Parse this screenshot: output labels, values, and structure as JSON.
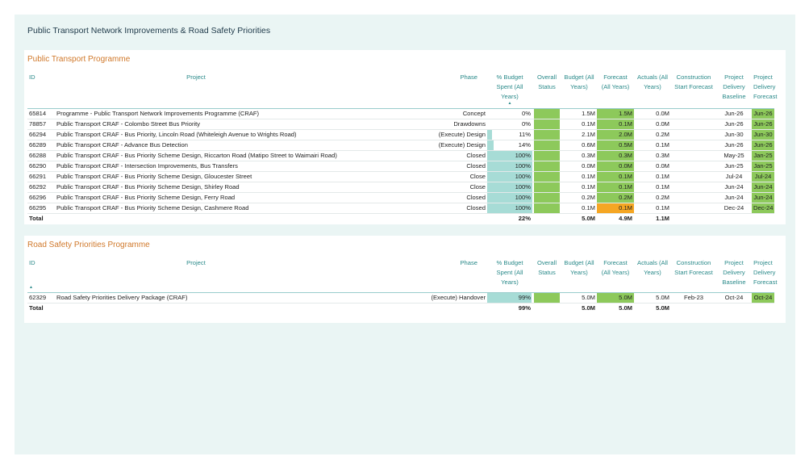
{
  "report_title": "Public Transport Network Improvements & Road Safety Priorities",
  "columns": {
    "id": "ID",
    "project": "Project",
    "phase": "Phase",
    "pct_budget": "% Budget Spent (All Years)",
    "overall_status": "Overall Status",
    "budget": "Budget (All Years)",
    "forecast": "Forecast (All Years)",
    "actuals": "Actuals (All Years)",
    "construction_start": "Construction Start Forecast",
    "delivery_baseline": "Project Delivery Baseline",
    "delivery_forecast": "Project Delivery Forecast"
  },
  "sort_arrow": "▲",
  "colors": {
    "green": "#8dc95b",
    "orange": "#f5a623",
    "bar": "#a7dcd6"
  },
  "public_transport": {
    "title": "Public Transport Programme",
    "rows": [
      {
        "id": "65814",
        "project": "Programme - Public Transport Network Improvements Programme (CRAF)",
        "phase": "Concept",
        "pct": "0%",
        "pct_value": 0,
        "budget": "1.5M",
        "forecast": "1.5M",
        "forecast_color": "green",
        "actuals": "0.0M",
        "cs": "",
        "baseline": "Jun-26",
        "dforecast": "Jun-26"
      },
      {
        "id": "78857",
        "project": "Public Transport CRAF - Colombo Street Bus Priority",
        "phase": "Drawdowns",
        "pct": "0%",
        "pct_value": 0,
        "budget": "0.1M",
        "forecast": "0.1M",
        "forecast_color": "green",
        "actuals": "0.0M",
        "cs": "",
        "baseline": "Jun-26",
        "dforecast": "Jun-26"
      },
      {
        "id": "66294",
        "project": "Public Transport CRAF - Bus Priority, Lincoln Road (Whiteleigh Avenue to Wrights Road)",
        "phase": "(Execute) Design",
        "pct": "11%",
        "pct_value": 11,
        "budget": "2.1M",
        "forecast": "2.0M",
        "forecast_color": "green",
        "actuals": "0.2M",
        "cs": "",
        "baseline": "Jun-30",
        "dforecast": "Jun-30"
      },
      {
        "id": "66289",
        "project": "Public Transport CRAF - Advance Bus Detection",
        "phase": "(Execute) Design",
        "pct": "14%",
        "pct_value": 14,
        "budget": "0.6M",
        "forecast": "0.5M",
        "forecast_color": "green",
        "actuals": "0.1M",
        "cs": "",
        "baseline": "Jun-26",
        "dforecast": "Jun-26"
      },
      {
        "id": "66288",
        "project": "Public Transport CRAF - Bus Priority Scheme Design, Riccarton Road (Matipo Street to Waimairi Road)",
        "phase": "Closed",
        "pct": "100%",
        "pct_value": 100,
        "budget": "0.3M",
        "forecast": "0.3M",
        "forecast_color": "green",
        "actuals": "0.3M",
        "cs": "",
        "baseline": "May-25",
        "dforecast": "Jan-25"
      },
      {
        "id": "66290",
        "project": "Public Transport CRAF - Intersection Improvements, Bus Transfers",
        "phase": "Closed",
        "pct": "100%",
        "pct_value": 100,
        "budget": "0.0M",
        "forecast": "0.0M",
        "forecast_color": "green",
        "actuals": "0.0M",
        "cs": "",
        "baseline": "Jun-25",
        "dforecast": "Jan-25"
      },
      {
        "id": "66291",
        "project": "Public Transport CRAF - Bus Priority Scheme Design, Gloucester Street",
        "phase": "Close",
        "pct": "100%",
        "pct_value": 100,
        "budget": "0.1M",
        "forecast": "0.1M",
        "forecast_color": "green",
        "actuals": "0.1M",
        "cs": "",
        "baseline": "Jul-24",
        "dforecast": "Jul-24"
      },
      {
        "id": "66292",
        "project": "Public Transport CRAF - Bus Priority Scheme Design, Shirley Road",
        "phase": "Close",
        "pct": "100%",
        "pct_value": 100,
        "budget": "0.1M",
        "forecast": "0.1M",
        "forecast_color": "green",
        "actuals": "0.1M",
        "cs": "",
        "baseline": "Jun-24",
        "dforecast": "Jun-24"
      },
      {
        "id": "66296",
        "project": "Public Transport CRAF - Bus Priority Scheme Design, Ferry Road",
        "phase": "Closed",
        "pct": "100%",
        "pct_value": 100,
        "budget": "0.2M",
        "forecast": "0.2M",
        "forecast_color": "green",
        "actuals": "0.2M",
        "cs": "",
        "baseline": "Jun-24",
        "dforecast": "Jun-24"
      },
      {
        "id": "66295",
        "project": "Public Transport CRAF - Bus Priority Scheme Design, Cashmere Road",
        "phase": "Closed",
        "pct": "100%",
        "pct_value": 100,
        "budget": "0.1M",
        "forecast": "0.1M",
        "forecast_color": "orange",
        "actuals": "0.1M",
        "cs": "",
        "baseline": "Dec-24",
        "dforecast": "Dec-24"
      }
    ],
    "total": {
      "label": "Total",
      "pct": "22%",
      "budget": "5.0M",
      "forecast": "4.9M",
      "actuals": "1.1M"
    }
  },
  "road_safety": {
    "title": "Road Safety Priorities Programme",
    "rows": [
      {
        "id": "62329",
        "project": "Road Safety Priorities Delivery Package (CRAF)",
        "phase": "(Execute) Handover",
        "pct": "99%",
        "pct_value": 99,
        "budget": "5.0M",
        "forecast": "5.0M",
        "forecast_color": "green",
        "actuals": "5.0M",
        "cs": "Feb-23",
        "baseline": "Oct-24",
        "dforecast": "Oct-24"
      }
    ],
    "total": {
      "label": "Total",
      "pct": "99%",
      "budget": "5.0M",
      "forecast": "5.0M",
      "actuals": "5.0M"
    }
  }
}
